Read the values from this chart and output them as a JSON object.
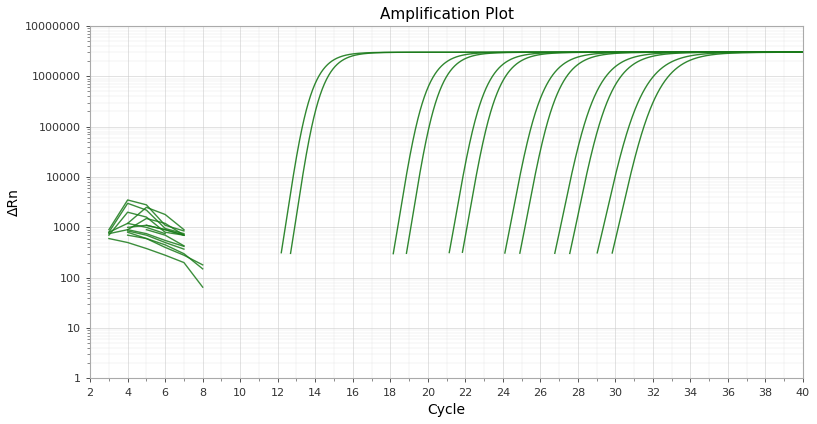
{
  "title": "Amplification Plot",
  "xlabel": "Cycle",
  "ylabel": "ΔRn",
  "xlim": [
    2,
    40
  ],
  "ylim_log": [
    1,
    10000000
  ],
  "xticks": [
    2,
    4,
    6,
    8,
    10,
    12,
    14,
    16,
    18,
    20,
    22,
    24,
    26,
    28,
    30,
    32,
    34,
    36,
    38,
    40
  ],
  "line_color": "#1a7a1a",
  "background_color": "#ffffff",
  "grid_color": "#cccccc",
  "plateau": 3000000,
  "curve_defs": [
    {
      "ct": 12.5,
      "steep": 1.5
    },
    {
      "ct": 13.0,
      "steep": 1.5
    },
    {
      "ct": 18.5,
      "steep": 1.4
    },
    {
      "ct": 19.2,
      "steep": 1.4
    },
    {
      "ct": 21.5,
      "steep": 1.3
    },
    {
      "ct": 22.2,
      "steep": 1.3
    },
    {
      "ct": 24.5,
      "steep": 1.2
    },
    {
      "ct": 25.3,
      "steep": 1.2
    },
    {
      "ct": 27.2,
      "steep": 1.1
    },
    {
      "ct": 28.0,
      "steep": 1.1
    },
    {
      "ct": 29.5,
      "steep": 1.0
    },
    {
      "ct": 30.3,
      "steep": 1.0
    }
  ],
  "noise_lines": [
    {
      "x": [
        3,
        4,
        5,
        6,
        7
      ],
      "y": [
        900,
        3500,
        2800,
        1100,
        850
      ]
    },
    {
      "x": [
        3,
        4,
        5,
        6,
        7
      ],
      "y": [
        800,
        3000,
        2200,
        950,
        750
      ]
    },
    {
      "x": [
        4,
        5,
        6,
        7
      ],
      "y": [
        1200,
        2500,
        1800,
        900
      ]
    },
    {
      "x": [
        3,
        4,
        5,
        6,
        7
      ],
      "y": [
        700,
        2000,
        1600,
        800,
        700
      ]
    },
    {
      "x": [
        4,
        5,
        6,
        7
      ],
      "y": [
        900,
        1500,
        1200,
        700
      ]
    },
    {
      "x": [
        3,
        4,
        5,
        6
      ],
      "y": [
        800,
        1200,
        1000,
        750
      ]
    },
    {
      "x": [
        4,
        5,
        6,
        7
      ],
      "y": [
        1000,
        1100,
        900,
        700
      ]
    },
    {
      "x": [
        5,
        6,
        7
      ],
      "y": [
        1100,
        900,
        700
      ]
    },
    {
      "x": [
        4,
        5,
        6,
        7,
        8
      ],
      "y": [
        700,
        600,
        450,
        300,
        150
      ]
    },
    {
      "x": [
        3,
        4,
        5,
        6,
        7,
        8
      ],
      "y": [
        600,
        500,
        380,
        280,
        200,
        65
      ]
    },
    {
      "x": [
        4,
        5,
        6,
        7,
        8
      ],
      "y": [
        800,
        600,
        400,
        280,
        180
      ]
    },
    {
      "x": [
        3,
        4,
        5,
        6,
        7
      ],
      "y": [
        750,
        900,
        750,
        550,
        420
      ]
    },
    {
      "x": [
        4,
        5,
        6,
        7
      ],
      "y": [
        850,
        700,
        500,
        370
      ]
    },
    {
      "x": [
        5,
        6,
        7
      ],
      "y": [
        900,
        700,
        430
      ]
    }
  ]
}
